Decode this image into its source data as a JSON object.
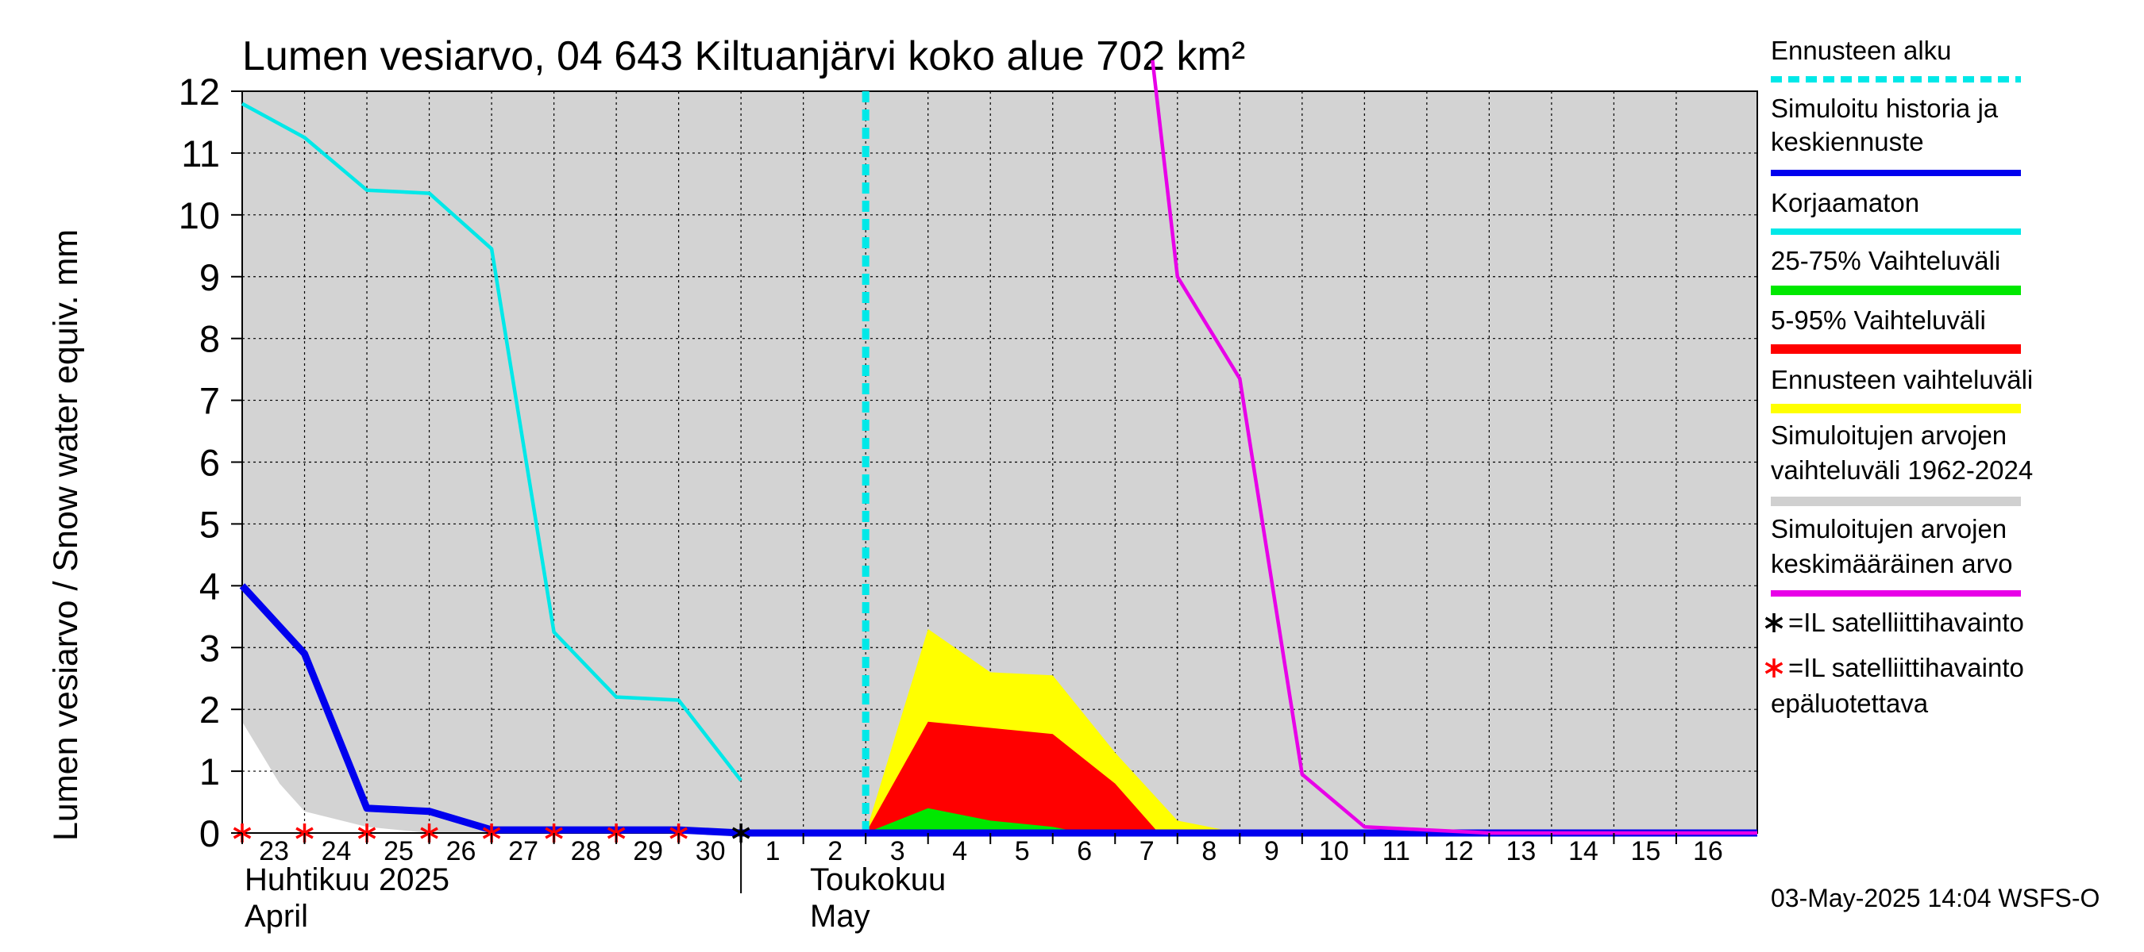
{
  "chart_data": {
    "type": "area",
    "title": "Lumen vesiarvo, 04 643 Kiltuanjärvi koko alue 702 km²",
    "ylabel": "Lumen vesiarvo / Snow water equiv.    mm",
    "ylim": [
      0,
      12
    ],
    "yticks": [
      "0",
      "1",
      "2",
      "3",
      "4",
      "5",
      "6",
      "7",
      "8",
      "9",
      "10",
      "11",
      "12"
    ],
    "xlim": [
      0,
      24.3
    ],
    "x_ticks": [
      {
        "x": 0,
        "label": "23"
      },
      {
        "x": 1,
        "label": "24"
      },
      {
        "x": 2,
        "label": "25"
      },
      {
        "x": 3,
        "label": "26"
      },
      {
        "x": 4,
        "label": "27"
      },
      {
        "x": 5,
        "label": "28"
      },
      {
        "x": 6,
        "label": "29"
      },
      {
        "x": 7,
        "label": "30"
      },
      {
        "x": 8,
        "label": "1"
      },
      {
        "x": 9,
        "label": "2"
      },
      {
        "x": 10,
        "label": "3"
      },
      {
        "x": 11,
        "label": "4"
      },
      {
        "x": 12,
        "label": "5"
      },
      {
        "x": 13,
        "label": "6"
      },
      {
        "x": 14,
        "label": "7"
      },
      {
        "x": 15,
        "label": "8"
      },
      {
        "x": 16,
        "label": "9"
      },
      {
        "x": 17,
        "label": "10"
      },
      {
        "x": 18,
        "label": "11"
      },
      {
        "x": 19,
        "label": "12"
      },
      {
        "x": 20,
        "label": "13"
      },
      {
        "x": 21,
        "label": "14"
      },
      {
        "x": 22,
        "label": "15"
      },
      {
        "x": 23,
        "label": "16"
      }
    ],
    "month_labels": {
      "april_fi": "Huhtikuu  2025",
      "april_en": "April",
      "may_fi": "Toukokuu",
      "may_en": "May"
    },
    "forecast_start_x": 10,
    "historical_range": {
      "upper": [
        [
          0,
          12
        ],
        [
          24.3,
          12
        ]
      ],
      "lower": [
        [
          0,
          1.8
        ],
        [
          0.6,
          0.8
        ],
        [
          1,
          0.35
        ],
        [
          2,
          0.1
        ],
        [
          3,
          0
        ],
        [
          24.3,
          0
        ]
      ]
    },
    "forecast_range_yellow": [
      [
        10,
        0
      ],
      [
        11,
        3.3
      ],
      [
        12,
        2.6
      ],
      [
        13,
        2.55
      ],
      [
        14,
        1.3
      ],
      [
        15,
        0.2
      ],
      [
        16,
        0
      ],
      [
        15,
        0
      ],
      [
        14,
        0
      ],
      [
        13,
        0
      ],
      [
        12,
        0
      ],
      [
        11,
        0
      ]
    ],
    "range_5_95": [
      [
        10,
        0
      ],
      [
        11,
        1.8
      ],
      [
        12,
        1.7
      ],
      [
        13,
        1.6
      ],
      [
        14,
        0.8
      ],
      [
        14.7,
        0
      ],
      [
        13,
        0
      ],
      [
        12,
        0
      ],
      [
        11,
        0
      ]
    ],
    "range_25_75": [
      [
        10,
        0
      ],
      [
        11,
        0.4
      ],
      [
        12,
        0.2
      ],
      [
        13,
        0.1
      ],
      [
        13.5,
        0
      ],
      [
        12,
        0
      ],
      [
        11,
        0
      ]
    ],
    "series": [
      {
        "name": "Simuloitu historia ja keskiennuste",
        "color": "#0000ee",
        "points": [
          [
            0,
            4
          ],
          [
            1,
            2.9
          ],
          [
            2,
            0.4
          ],
          [
            3,
            0.35
          ],
          [
            4,
            0.05
          ],
          [
            5,
            0.05
          ],
          [
            6,
            0.05
          ],
          [
            7,
            0.05
          ],
          [
            8,
            0
          ],
          [
            10,
            0
          ],
          [
            24.3,
            0
          ]
        ]
      },
      {
        "name": "Korjaamaton",
        "color": "#00e8e8",
        "points": [
          [
            0,
            11.8
          ],
          [
            1,
            11.25
          ],
          [
            2,
            10.4
          ],
          [
            3,
            10.35
          ],
          [
            4,
            9.45
          ],
          [
            5,
            3.25
          ],
          [
            6,
            2.2
          ],
          [
            7,
            2.15
          ],
          [
            8,
            0.85
          ]
        ]
      },
      {
        "name": "Simuloitujen arvojen keskimääräinen arvo",
        "color": "#e800e8",
        "points": [
          [
            14.6,
            12.5
          ],
          [
            15,
            9
          ],
          [
            16,
            7.35
          ],
          [
            17,
            0.95
          ],
          [
            18,
            0.1
          ],
          [
            19,
            0.05
          ],
          [
            20,
            0
          ],
          [
            24.3,
            0
          ]
        ]
      }
    ],
    "satellite_unreliable_x": [
      0,
      1,
      2,
      3,
      4,
      5,
      6,
      7
    ],
    "satellite_x": [
      8
    ],
    "legend": [
      {
        "key": "forecast_start",
        "label1": "Ennusteen alku",
        "label2": "",
        "color": "#00e8e8",
        "style": "dashed"
      },
      {
        "key": "sim_history",
        "label1": "Simuloitu historia ja",
        "label2": "keskiennuste",
        "color": "#0000ee",
        "style": "line"
      },
      {
        "key": "uncorrected",
        "label1": "Korjaamaton",
        "label2": "",
        "color": "#00e8e8",
        "style": "line"
      },
      {
        "key": "r2575",
        "label1": "25-75% Vaihteluväli",
        "label2": "",
        "color": "#00e800",
        "style": "band"
      },
      {
        "key": "r595",
        "label1": "5-95% Vaihteluväli",
        "label2": "",
        "color": "#ff0000",
        "style": "band"
      },
      {
        "key": "forecast_range",
        "label1": "Ennusteen vaihteluväli",
        "label2": "",
        "color": "#ffff00",
        "style": "band"
      },
      {
        "key": "hist_range",
        "label1": "Simuloitujen arvojen",
        "label2": "vaihteluväli 1962-2024",
        "color": "#d0d0d0",
        "style": "band"
      },
      {
        "key": "hist_mean",
        "label1": "Simuloitujen arvojen",
        "label2": "keskimääräinen arvo",
        "color": "#e800e8",
        "style": "line"
      },
      {
        "key": "sat",
        "label1": "=IL satelliittihavainto",
        "label2": "",
        "color": "#000000",
        "style": "star"
      },
      {
        "key": "sat_unrel",
        "label1": "=IL satelliittihavainto",
        "label2": "epäluotettava",
        "color": "#ff0000",
        "style": "star"
      }
    ],
    "footer": "03-May-2025 14:04 WSFS-O"
  }
}
